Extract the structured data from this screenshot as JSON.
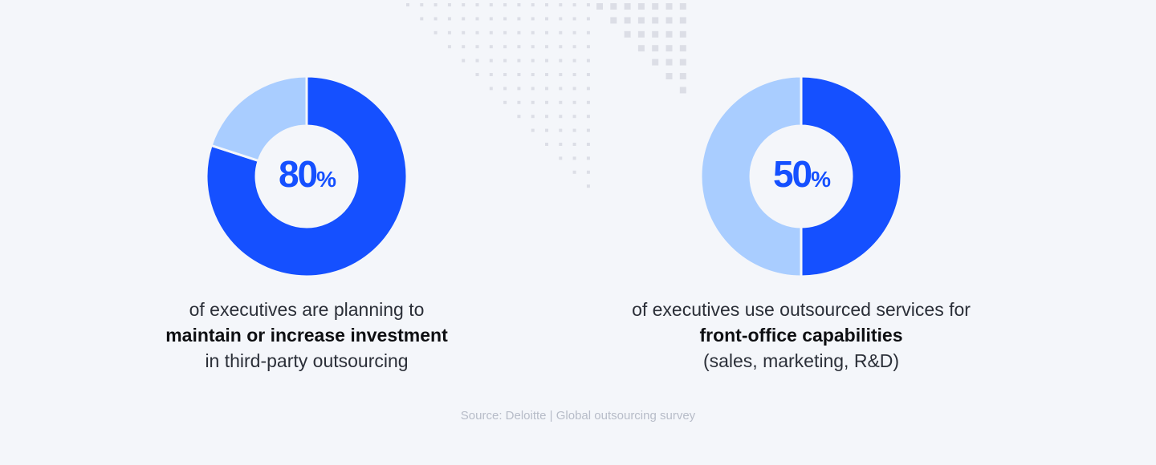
{
  "colors": {
    "primary": "#1550ff",
    "secondary": "#a9cdff",
    "background": "#f4f6fa",
    "pattern": "#dcdee6"
  },
  "chart_data": [
    {
      "type": "pie",
      "style": "donut",
      "values": [
        80,
        20
      ],
      "center_label": {
        "value": "80",
        "unit": "%"
      }
    },
    {
      "type": "pie",
      "style": "donut",
      "values": [
        50,
        50
      ],
      "center_label": {
        "value": "50",
        "unit": "%"
      }
    }
  ],
  "stats": [
    {
      "before": "of executives are planning to",
      "bold": "maintain or increase investment",
      "after": "in third-party outsourcing"
    },
    {
      "before": "of executives use outsourced services for",
      "bold": "front-office capabilities",
      "after": "(sales, marketing, R&D)"
    }
  ],
  "source": "Source: Deloitte | Global outsourcing survey"
}
